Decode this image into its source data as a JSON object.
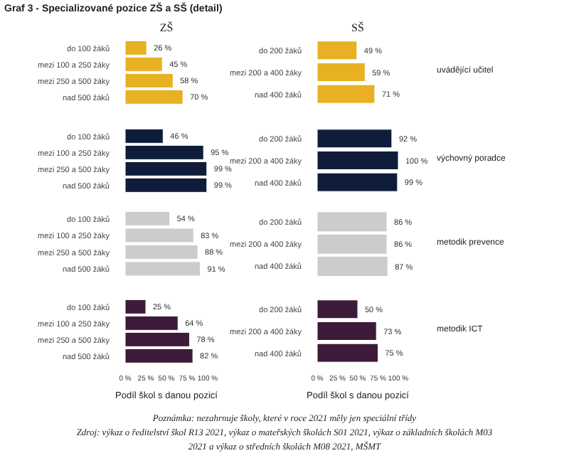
{
  "chart_data": [
    {
      "type": "bar",
      "orientation": "horizontal",
      "title": "Graf 3 - Specializované pozice ZŠ a SŠ (detail)",
      "subtitle": "ZŠ",
      "categories": [
        "do 100 žáků",
        "mezi 100 a 250 žáky",
        "mezi 250 a 500 žáky",
        "nad 500 žáků"
      ],
      "values": [
        26,
        45,
        58,
        70
      ],
      "value_labels": [
        "26 %",
        "45 %",
        "58 %",
        "70 %"
      ],
      "color": "#e8b023",
      "xlim": [
        0,
        100
      ],
      "tick_labels": "y"
    },
    {
      "type": "bar",
      "orientation": "horizontal",
      "title": "SŠ",
      "y2label": "uvádějící učitel",
      "categories": [
        "do 200 žáků",
        "mezi 200 a 400 žáky",
        "nad 400 žáků"
      ],
      "values": [
        49,
        59,
        71
      ],
      "value_labels": [
        "49 %",
        "59 %",
        "71 %"
      ],
      "color": "#e8b023",
      "xlim": [
        0,
        100
      ],
      "tick_labels": "y"
    },
    {
      "type": "bar",
      "orientation": "horizontal",
      "categories": [
        "do 100 žáků",
        "mezi 100 a 250 žáky",
        "mezi 250 a 500 žáky",
        "nad 500 žáků"
      ],
      "values": [
        46,
        95,
        99,
        99
      ],
      "value_labels": [
        "46 %",
        "95 %",
        "99 %",
        "99 %"
      ],
      "color": "#0f1d3b",
      "xlim": [
        0,
        100
      ],
      "tick_labels": "y"
    },
    {
      "type": "bar",
      "orientation": "horizontal",
      "y2label": "výchovný poradce",
      "categories": [
        "do 200 žáků",
        "mezi 200 a 400 žáky",
        "nad 400 žáků"
      ],
      "values": [
        92,
        100,
        99
      ],
      "value_labels": [
        "92 %",
        "100 %",
        "99 %"
      ],
      "color": "#0f1d3b",
      "xlim": [
        0,
        100
      ],
      "tick_labels": "y"
    },
    {
      "type": "bar",
      "orientation": "horizontal",
      "categories": [
        "do 100 žáků",
        "mezi 100 a 250 žáky",
        "mezi 250 a 500 žáky",
        "nad 500 žáků"
      ],
      "values": [
        54,
        83,
        88,
        91
      ],
      "value_labels": [
        "54 %",
        "83 %",
        "88 %",
        "91 %"
      ],
      "color": "#cccccc",
      "xlim": [
        0,
        100
      ],
      "tick_labels": "y"
    },
    {
      "type": "bar",
      "orientation": "horizontal",
      "y2label": "metodik prevence",
      "categories": [
        "do 200 žáků",
        "mezi 200 a 400 žáky",
        "nad 400 žáků"
      ],
      "values": [
        86,
        86,
        87
      ],
      "value_labels": [
        "86 %",
        "86 %",
        "87 %"
      ],
      "color": "#cccccc",
      "xlim": [
        0,
        100
      ],
      "tick_labels": "y"
    },
    {
      "type": "bar",
      "orientation": "horizontal",
      "xlabel": "Podíl škol s danou pozicí",
      "categories": [
        "do 100 žáků",
        "mezi 100 a 250 žáky",
        "mezi 250 a 500 žáky",
        "nad 500 žáků"
      ],
      "values": [
        25,
        64,
        78,
        82
      ],
      "value_labels": [
        "25 %",
        "64 %",
        "78 %",
        "82 %"
      ],
      "color": "#3d1a3a",
      "xlim": [
        0,
        100
      ],
      "xticks": [
        {
          "value": 0,
          "label": "0 %"
        },
        {
          "value": 25,
          "label": "25 %"
        },
        {
          "value": 50,
          "label": "50 %"
        },
        {
          "value": 75,
          "label": "75 %"
        },
        {
          "value": 100,
          "label": "100 %"
        }
      ]
    },
    {
      "type": "bar",
      "orientation": "horizontal",
      "xlabel": "Podíl škol s danou pozicí",
      "y2label": "metodik ICT",
      "categories": [
        "do 200 žáků",
        "mezi 200 a 400 žáky",
        "nad 400 žáků"
      ],
      "values": [
        50,
        73,
        75
      ],
      "value_labels": [
        "50 %",
        "73 %",
        "75 %"
      ],
      "color": "#3d1a3a",
      "xlim": [
        0,
        100
      ],
      "xticks": [
        {
          "value": 0,
          "label": "0 %"
        },
        {
          "value": 25,
          "label": "25 %"
        },
        {
          "value": 50,
          "label": "50 %"
        },
        {
          "value": 75,
          "label": "75 %"
        },
        {
          "value": 100,
          "label": "100 %"
        }
      ],
      "annotations": [
        "Poznámka: nezahrnuje školy, které v roce 2021 měly jen speciální třídy",
        "Zdroj: výkaz o ředitelství škol R13 2021, výkaz o mateřských školách S01 2021, výkaz o základních školách M03",
        "2021 a výkaz o středních školách M08 2021, MŠMT"
      ]
    }
  ]
}
